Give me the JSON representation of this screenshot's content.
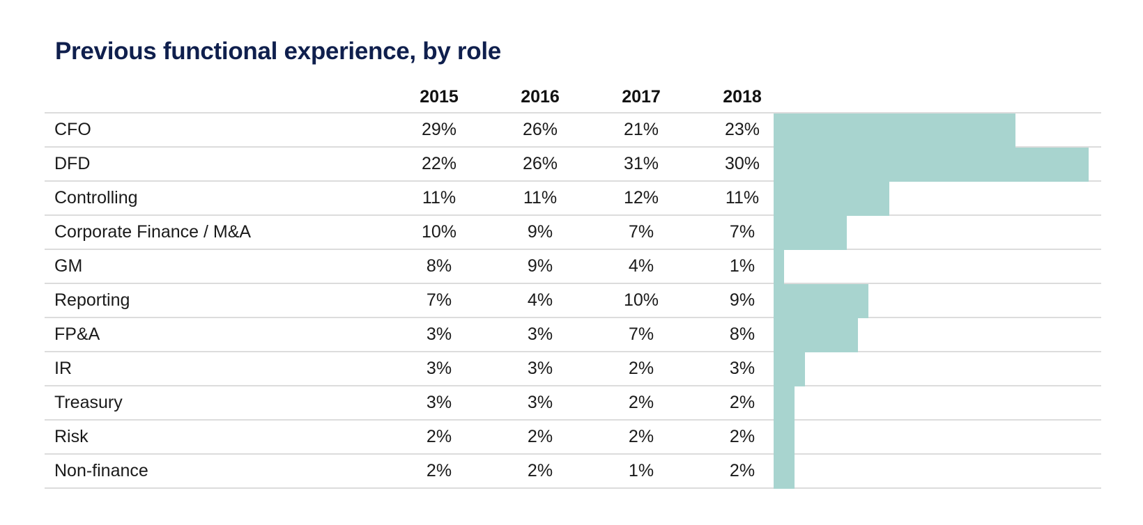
{
  "title": "Previous functional experience, by role",
  "colors": {
    "title": "#0f1f4d",
    "bar": "#a8d4cf",
    "gridline": "#dcdcdc"
  },
  "chart_data": {
    "type": "table",
    "title": "Previous functional experience, by role",
    "columns": [
      "2015",
      "2016",
      "2017",
      "2018"
    ],
    "bar_column": "2018",
    "bar_max": 30,
    "rows": [
      {
        "label": "CFO",
        "values": [
          "29%",
          "26%",
          "21%",
          "23%"
        ],
        "bar": 23
      },
      {
        "label": "DFD",
        "values": [
          "22%",
          "26%",
          "31%",
          "30%"
        ],
        "bar": 30
      },
      {
        "label": "Controlling",
        "values": [
          "11%",
          "11%",
          "12%",
          "11%"
        ],
        "bar": 11
      },
      {
        "label": "Corporate Finance / M&A",
        "values": [
          "10%",
          "9%",
          "7%",
          "7%"
        ],
        "bar": 7
      },
      {
        "label": "GM",
        "values": [
          "8%",
          "9%",
          "4%",
          "1%"
        ],
        "bar": 1
      },
      {
        "label": "Reporting",
        "values": [
          "7%",
          "4%",
          "10%",
          "9%"
        ],
        "bar": 9
      },
      {
        "label": "FP&A",
        "values": [
          "3%",
          "3%",
          "7%",
          "8%"
        ],
        "bar": 8
      },
      {
        "label": "IR",
        "values": [
          "3%",
          "3%",
          "2%",
          "3%"
        ],
        "bar": 3
      },
      {
        "label": "Treasury",
        "values": [
          "3%",
          "3%",
          "2%",
          "2%"
        ],
        "bar": 2
      },
      {
        "label": "Risk",
        "values": [
          "2%",
          "2%",
          "2%",
          "2%"
        ],
        "bar": 2
      },
      {
        "label": "Non-finance",
        "values": [
          "2%",
          "2%",
          "1%",
          "2%"
        ],
        "bar": 2
      }
    ]
  }
}
